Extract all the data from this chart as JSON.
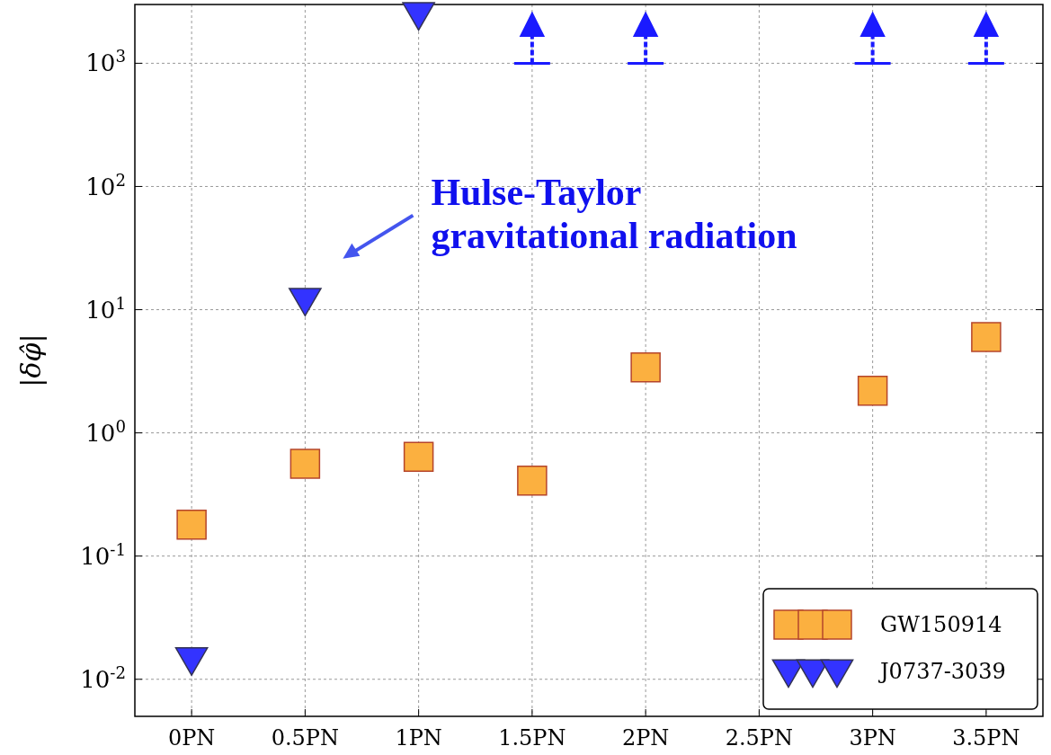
{
  "chart_data": {
    "type": "scatter",
    "ylabel": "|δφ̂|",
    "categories": [
      "0PN",
      "0.5PN",
      "1PN",
      "1.5PN",
      "2PN",
      "2.5PN",
      "3PN",
      "3.5PN"
    ],
    "log": "y",
    "ylim": [
      0.005,
      3000
    ],
    "yticks": [
      {
        "value": 0.01,
        "label": "10$^{-2}$"
      },
      {
        "value": 0.1,
        "label": "10$^{-1}$"
      },
      {
        "value": 1,
        "label": "10$^{0}$"
      },
      {
        "value": 10,
        "label": "10$^{1}$"
      },
      {
        "value": 100,
        "label": "10$^{2}$"
      },
      {
        "value": 1000,
        "label": "10$^{3}$"
      }
    ],
    "grid": true,
    "legend": "bottom right",
    "series": [
      {
        "name": "GW150914",
        "color": "#fbb040",
        "marker": "square",
        "values": [
          0.18,
          0.56,
          0.64,
          0.41,
          3.4,
          null,
          2.2,
          6.0
        ]
      },
      {
        "name": "J0737-3039",
        "color": "#3333ff",
        "marker": "triangle",
        "values": [
          0.0145,
          12,
          2500,
          null,
          null,
          null,
          null,
          null
        ]
      },
      {
        "color": "#1a1aff",
        "marker": "triangle",
        "values": [
          null,
          null,
          null,
          2000,
          2000,
          null,
          2000,
          2000
        ],
        "errors": [
          null,
          null,
          null,
          [
            1000,
            2000
          ],
          [
            1000,
            2000
          ],
          null,
          [
            1000,
            2000
          ],
          [
            1000,
            2000
          ]
        ]
      }
    ],
    "annotations": [
      "Hulse-Taylor\ngravitational radiation"
    ]
  }
}
